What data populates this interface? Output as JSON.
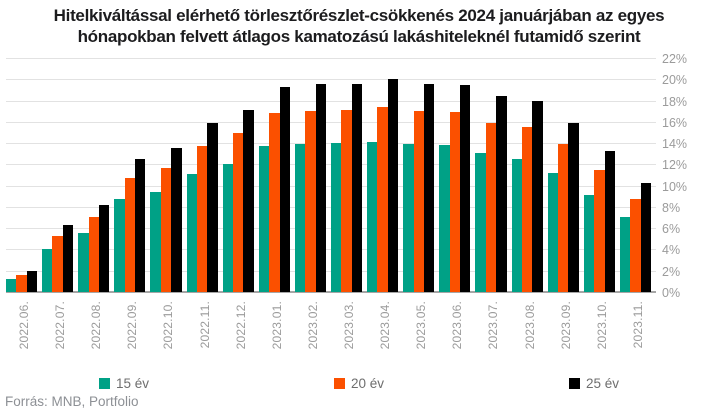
{
  "title": "Hitelkiváltással elérhető törlesztőrészlet-csökkenés 2024 januárjában az egyes hónapokban felvett átlagos kamatozású lakáshiteleknél futamidő szerint",
  "source": "Forrás: MNB, Portfolio",
  "colors": {
    "series_15": "#00A186",
    "series_20": "#FB5000",
    "series_25": "#000000",
    "title_text": "#1c1c1e",
    "axis_text": "#9b9b9b",
    "gridline": "#e2e2e2",
    "baseline": "#a6a6a6"
  },
  "chart_data": {
    "type": "bar",
    "title": "Hitelkiváltással elérhető törlesztőrészlet-csökkenés 2024 januárjában az egyes hónapokban felvett átlagos kamatozású lakáshiteleknél futamidő szerint",
    "categories": [
      "2022.06.",
      "2022.07.",
      "2022.08.",
      "2022.09.",
      "2022.10.",
      "2022.11.",
      "2022.12.",
      "2023.01.",
      "2023.02.",
      "2023.03.",
      "2023.04.",
      "2023.05.",
      "2023.06.",
      "2023.07.",
      "2023.08.",
      "2023.09.",
      "2023.10.",
      "2023.11."
    ],
    "series": [
      {
        "name": "15 év",
        "color": "#00A186",
        "values": [
          1.2,
          4.1,
          5.6,
          8.8,
          9.4,
          11.1,
          12.1,
          13.8,
          14.0,
          14.1,
          14.2,
          14.0,
          13.9,
          13.1,
          12.6,
          11.2,
          9.2,
          7.1
        ]
      },
      {
        "name": "20 év",
        "color": "#FB5000",
        "values": [
          1.6,
          5.3,
          7.1,
          10.8,
          11.7,
          13.8,
          15.0,
          16.9,
          17.1,
          17.2,
          17.5,
          17.1,
          17.0,
          16.0,
          15.6,
          14.0,
          11.5,
          8.8
        ]
      },
      {
        "name": "25 év",
        "color": "#000000",
        "values": [
          2.0,
          6.3,
          8.2,
          12.6,
          13.6,
          16.0,
          17.2,
          19.4,
          19.6,
          19.6,
          20.1,
          19.6,
          19.5,
          18.5,
          18.0,
          16.0,
          13.3,
          10.3
        ]
      }
    ],
    "xlabel": "",
    "ylabel": "",
    "ylim": [
      0,
      22
    ],
    "ytick_step": 2,
    "ytick_suffix": "%",
    "ytick_side": "right",
    "grid": true,
    "legend_position": "bottom"
  }
}
